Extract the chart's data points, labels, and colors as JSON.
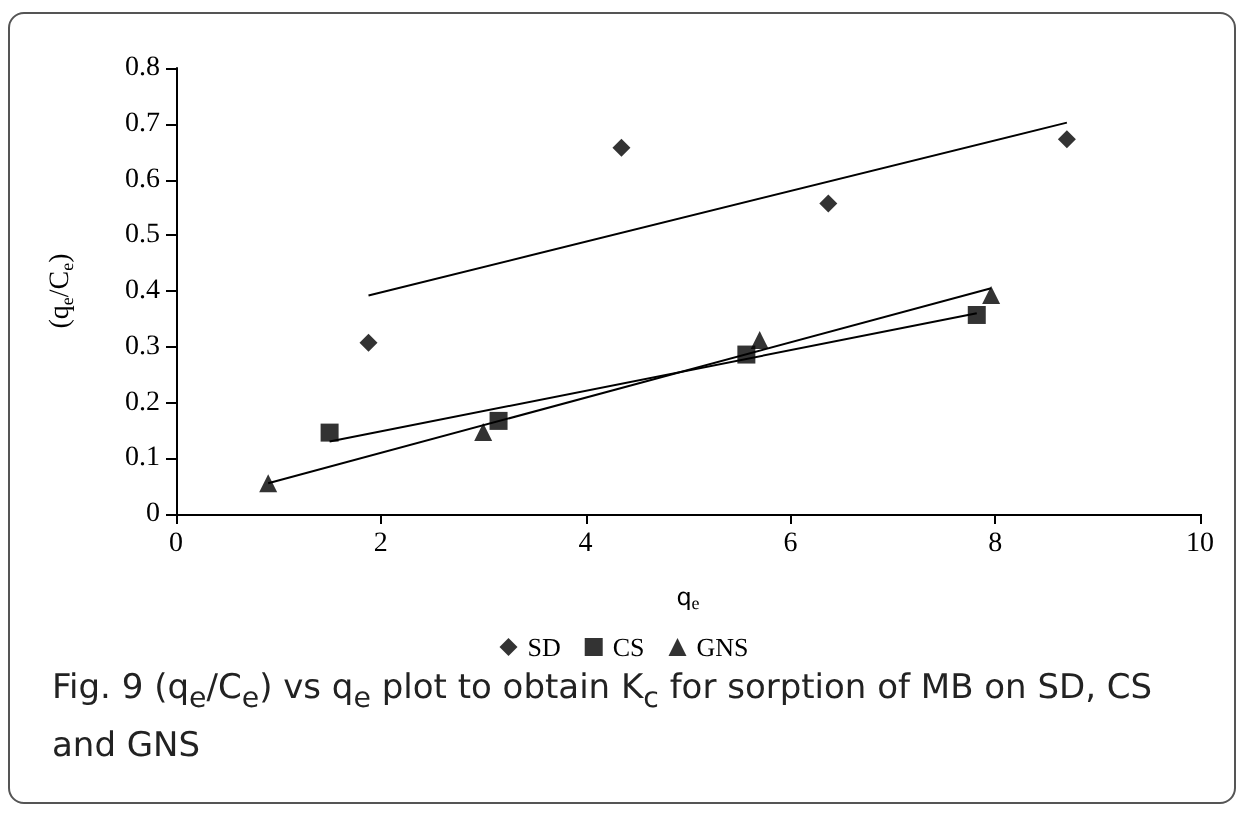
{
  "chart_data": {
    "type": "scatter",
    "xlabel": "q$_{e}$",
    "ylabel": "(q$_{e}$/C$_{e}$)",
    "xlim": [
      0,
      10
    ],
    "xticks": [
      0,
      2,
      4,
      6,
      8,
      10
    ],
    "ylim": [
      0,
      0.8
    ],
    "yticks": [
      0,
      0.1,
      0.2,
      0.3,
      0.4,
      0.5,
      0.6,
      0.7,
      0.8
    ],
    "grid": false,
    "legend": "bottom",
    "series": [
      {
        "name": "SD",
        "color": "#000000",
        "marker": "diamond",
        "x": [
          1.88,
          4.35,
          6.37,
          8.7
        ],
        "values": [
          0.307,
          0.657,
          0.557,
          0.672
        ]
      },
      {
        "name": "CS",
        "color": "#000000",
        "marker": "square",
        "x": [
          1.5,
          3.15,
          5.57,
          7.82
        ],
        "values": [
          0.146,
          0.167,
          0.286,
          0.357
        ]
      },
      {
        "name": "GNS",
        "color": "#000000",
        "marker": "triangle",
        "x": [
          0.9,
          3.0,
          5.7,
          7.96
        ],
        "values": [
          0.055,
          0.147,
          0.312,
          0.393
        ]
      },
      {
        "type": "line",
        "color": "#000000",
        "marker": "none",
        "x": [
          1.88,
          8.7
        ],
        "values": [
          0.392,
          0.702
        ]
      },
      {
        "type": "line",
        "color": "#000000",
        "marker": "none",
        "x": [
          1.5,
          7.82
        ],
        "values": [
          0.13,
          0.36
        ]
      },
      {
        "type": "line",
        "color": "#000000",
        "marker": "none",
        "x": [
          0.9,
          7.96
        ],
        "values": [
          0.055,
          0.405
        ]
      }
    ],
    "annotations": [
      "Fig. 9  (q$_{e}$/C$_{e}$) vs q$_{e}$ plot to obtain K$_{c}$ for sorption of MB on SD, CS and GNS"
    ]
  }
}
